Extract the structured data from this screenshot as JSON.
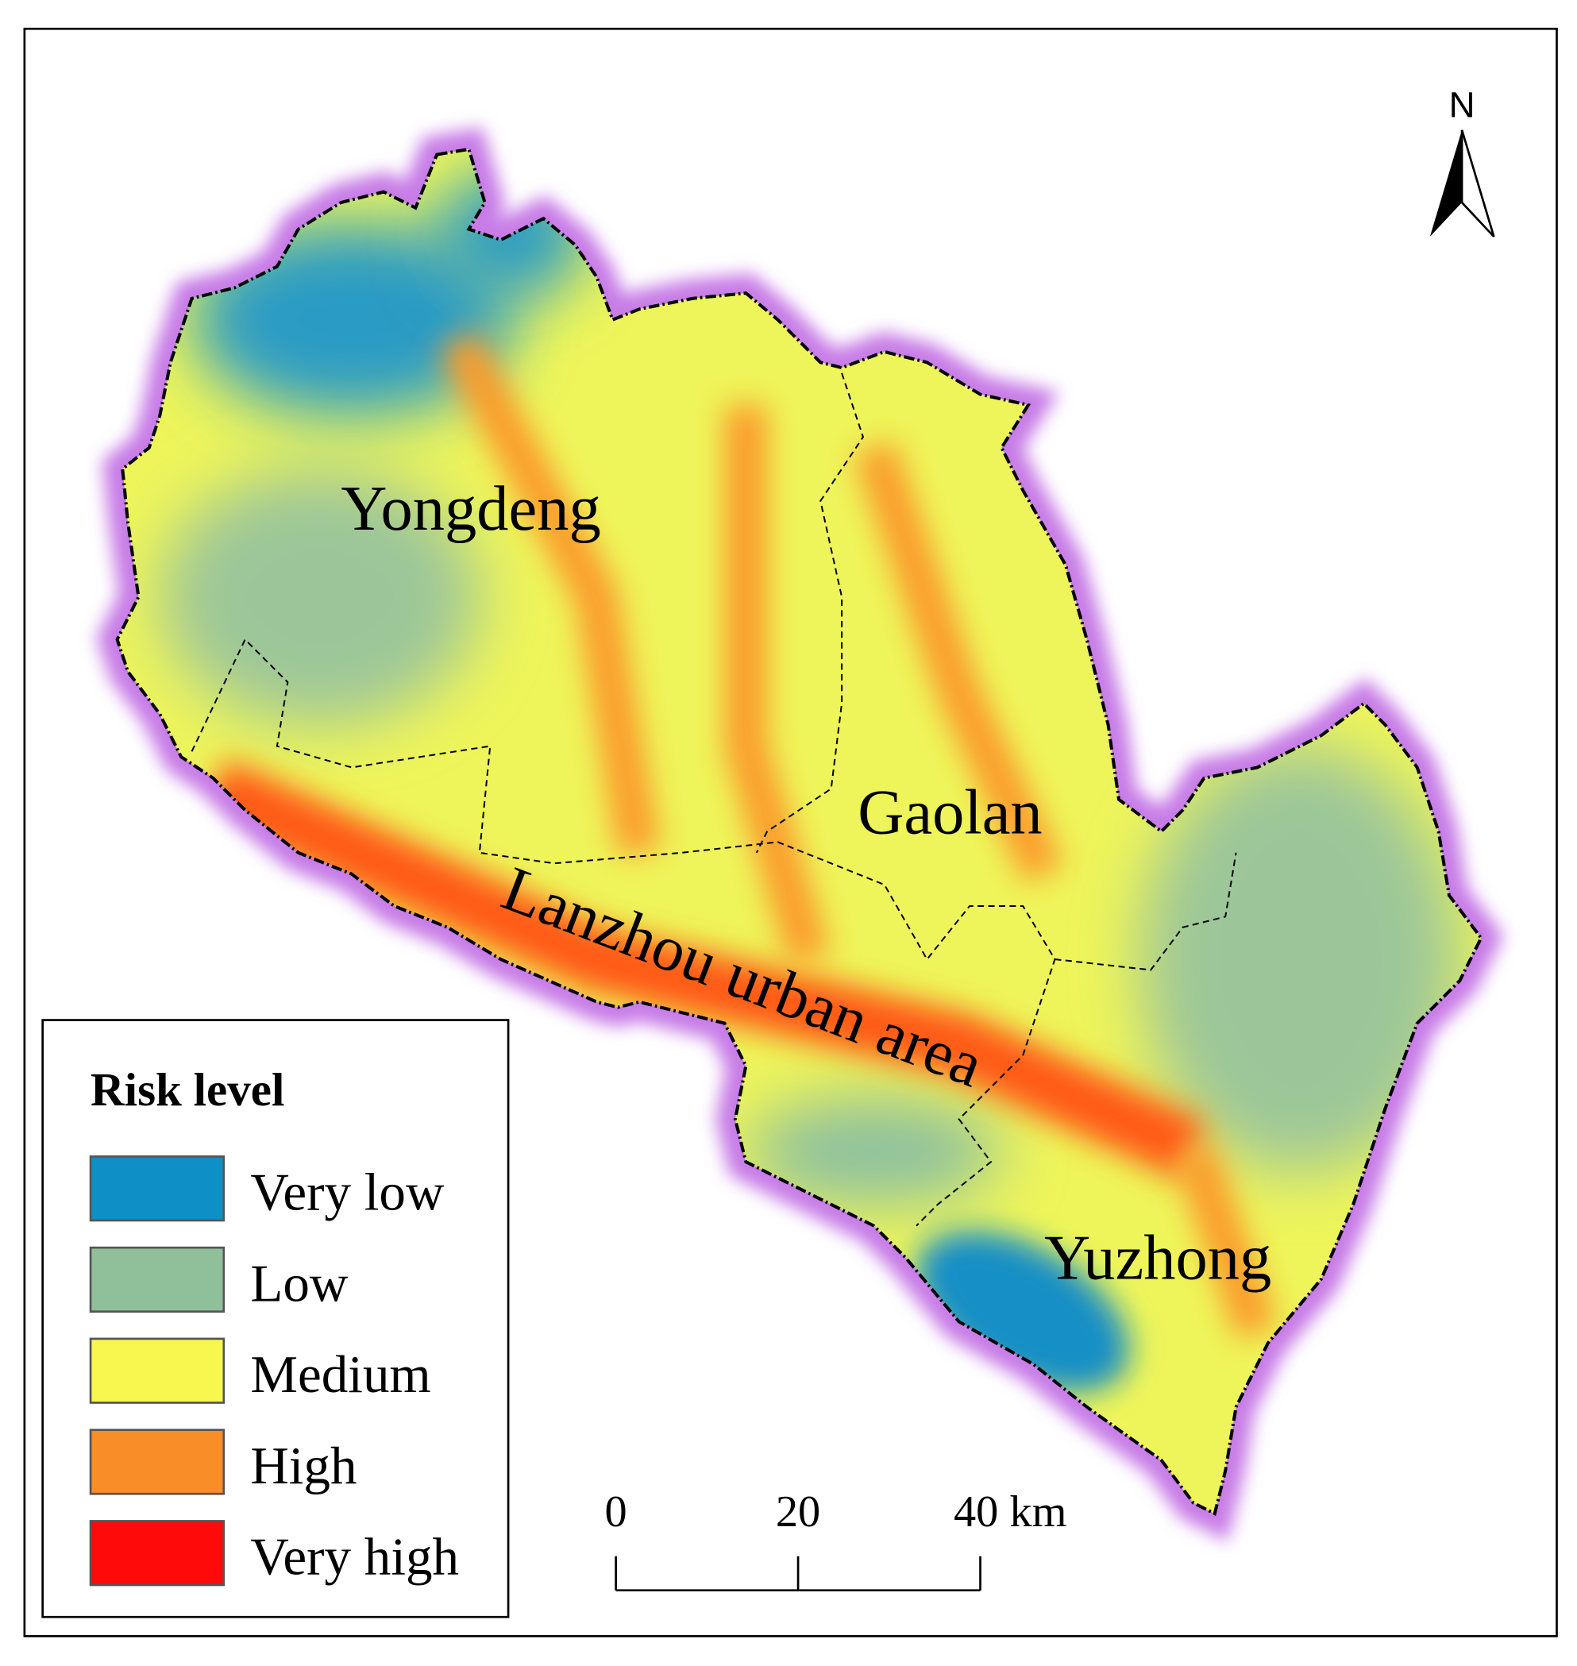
{
  "map": {
    "regions": [
      "Yongdeng",
      "Gaolan",
      "Lanzhou urban area",
      "Yuzhong"
    ],
    "north": "N",
    "legend": {
      "title": "Risk level",
      "items": [
        {
          "label": "Very low",
          "color": "#0e8fc6"
        },
        {
          "label": "Low",
          "color": "#8fc09a"
        },
        {
          "label": "Medium",
          "color": "#f7f74f"
        },
        {
          "label": "High",
          "color": "#f98d28"
        },
        {
          "label": "Very high",
          "color": "#fe0a0a"
        }
      ]
    },
    "scale_bar": {
      "ticks": [
        0,
        20,
        {
          "value": 40,
          "label": "40 km"
        }
      ]
    }
  }
}
